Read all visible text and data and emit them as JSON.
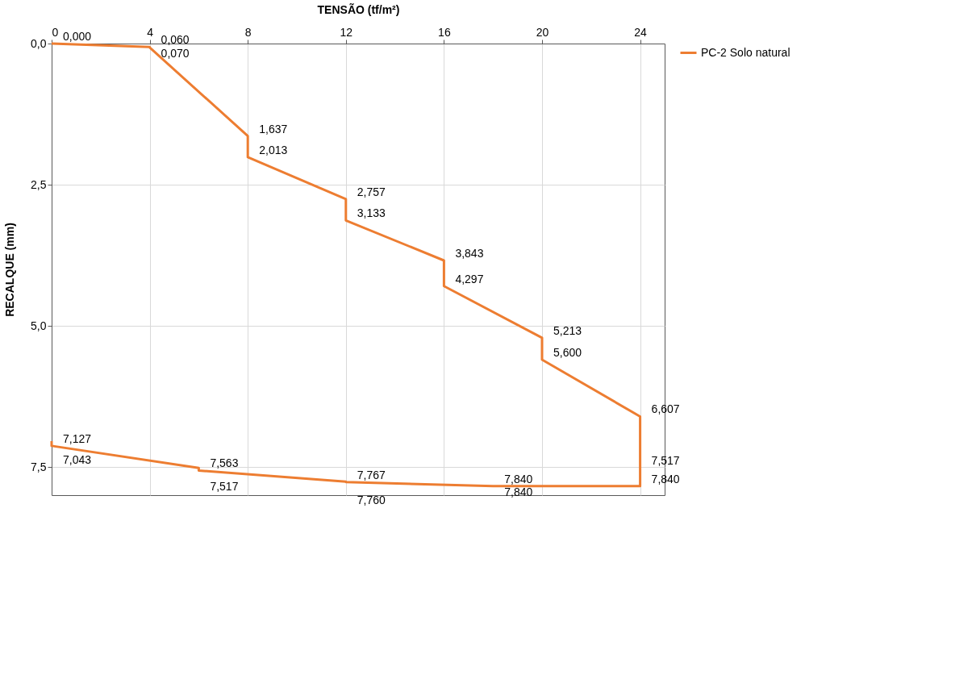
{
  "chart_data": {
    "type": "line",
    "xlabel": "TENSÃO (tf/m²)",
    "ylabel": "RECALQUE (mm)",
    "x": [
      0,
      4,
      4,
      8,
      8,
      12,
      12,
      16,
      16,
      20,
      20,
      24,
      24,
      24,
      18,
      18,
      12,
      12,
      6,
      6,
      0,
      0
    ],
    "series": [
      {
        "name": "PC-2 Solo natural",
        "color": "#ed7d31",
        "values": [
          0.0,
          0.06,
          0.07,
          1.637,
          2.013,
          2.757,
          3.133,
          3.843,
          4.297,
          5.213,
          5.6,
          6.607,
          7.517,
          7.84,
          7.84,
          7.84,
          7.767,
          7.76,
          7.563,
          7.517,
          7.127,
          7.043
        ],
        "value_labels": [
          "0,000",
          "0,060",
          "0,070",
          "1,637",
          "2,013",
          "2,757",
          "3,133",
          "3,843",
          "4,297",
          "5,213",
          "5,600",
          "6,607",
          "7,517",
          "7,840",
          "7,840",
          "7,840",
          "7,767",
          "7,760",
          "7,563",
          "7,517",
          "7,127",
          "7,043"
        ]
      }
    ],
    "xlim": [
      0,
      25
    ],
    "xticks": [
      0,
      4,
      8,
      12,
      16,
      20,
      24
    ],
    "ylim": [
      8,
      0
    ],
    "yticks": [
      {
        "value": 0,
        "label": "0,0"
      },
      {
        "value": 2.5,
        "label": "2,5"
      },
      {
        "value": 5,
        "label": "5,0"
      },
      {
        "value": 7.5,
        "label": "7,5"
      }
    ],
    "grid": true,
    "legend": "right",
    "marker": "none",
    "line_style": "solid"
  }
}
